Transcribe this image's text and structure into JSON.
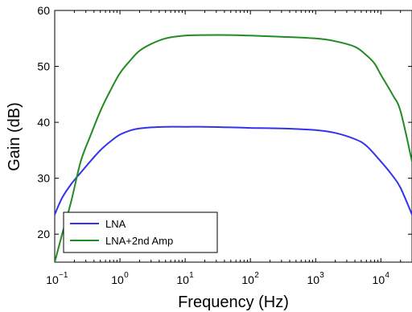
{
  "chart_data": {
    "type": "line",
    "title": "",
    "xlabel": "Frequency (Hz)",
    "ylabel": "Gain (dB)",
    "xscale": "log",
    "xlim": [
      0.1,
      30000
    ],
    "ylim": [
      15,
      60
    ],
    "grid": false,
    "legend_position": "bottom-left",
    "x_ticks": [
      {
        "value": 0.1,
        "base": "10",
        "exp": "−1"
      },
      {
        "value": 1,
        "base": "10",
        "exp": "0"
      },
      {
        "value": 10,
        "base": "10",
        "exp": "1"
      },
      {
        "value": 100,
        "base": "10",
        "exp": "2"
      },
      {
        "value": 1000,
        "base": "10",
        "exp": "3"
      },
      {
        "value": 10000,
        "base": "10",
        "exp": "4"
      }
    ],
    "y_ticks": [
      {
        "value": 20,
        "label": "20"
      },
      {
        "value": 30,
        "label": "30"
      },
      {
        "value": 40,
        "label": "40"
      },
      {
        "value": 50,
        "label": "50"
      },
      {
        "value": 60,
        "label": "60"
      }
    ],
    "series": [
      {
        "name": "LNA",
        "color": "#3333ee",
        "x": [
          0.1,
          0.13,
          0.18,
          0.25,
          0.35,
          0.5,
          0.7,
          1,
          1.5,
          2,
          3,
          5,
          10,
          20,
          50,
          100,
          300,
          1000,
          2000,
          4000,
          6000,
          10000,
          15000,
          20000,
          30000
        ],
        "y": [
          23.5,
          26.5,
          29,
          31,
          33,
          35,
          36.5,
          37.8,
          38.6,
          38.9,
          39.1,
          39.2,
          39.2,
          39.2,
          39.1,
          39,
          38.9,
          38.6,
          38.1,
          37,
          35.8,
          33,
          30.5,
          28.3,
          23.5
        ]
      },
      {
        "name": "LNA+2nd Amp",
        "color": "#228b22",
        "x": [
          0.1,
          0.13,
          0.18,
          0.25,
          0.35,
          0.5,
          0.7,
          1,
          1.5,
          2,
          3,
          5,
          10,
          20,
          50,
          100,
          300,
          1000,
          2000,
          4000,
          6000,
          8000,
          10000,
          15000,
          20000,
          30000
        ],
        "y": [
          15,
          20,
          26,
          33,
          37.5,
          42,
          45.5,
          48.8,
          51.3,
          52.8,
          54,
          55,
          55.5,
          55.6,
          55.6,
          55.5,
          55.3,
          55,
          54.5,
          53.5,
          52,
          50.5,
          48.5,
          45,
          42,
          33
        ]
      }
    ]
  }
}
